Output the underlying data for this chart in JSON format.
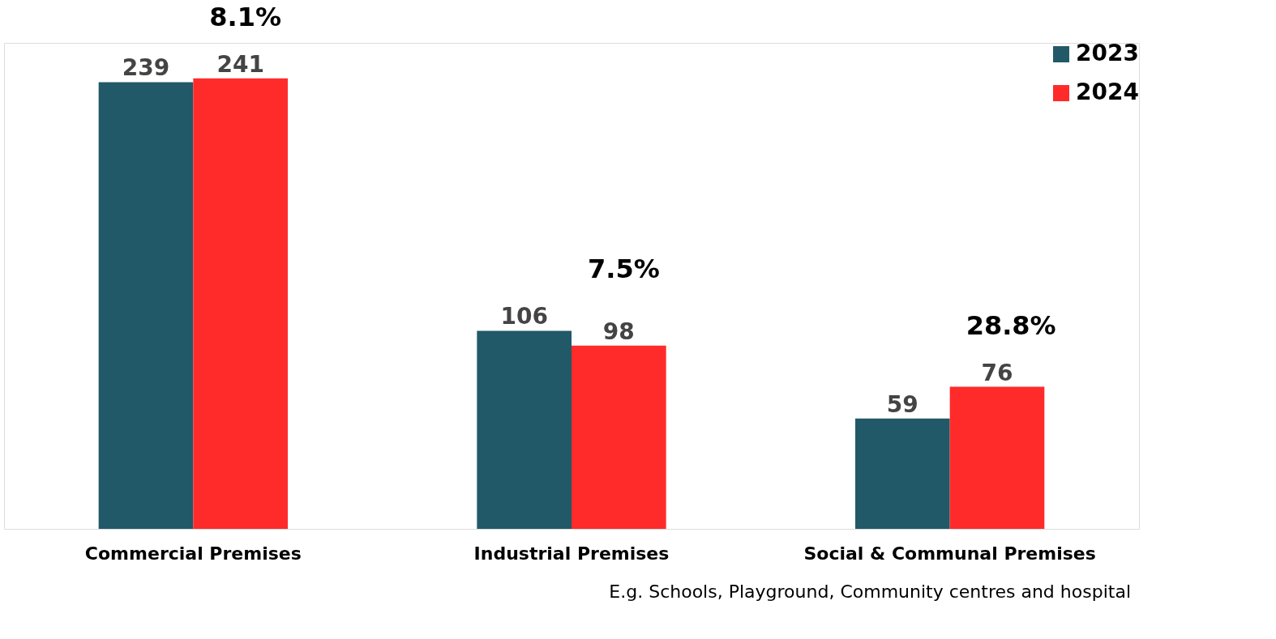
{
  "chart_data": {
    "type": "bar",
    "categories": [
      "Commercial Premises",
      "Industrial Premises",
      "Social & Communal Premises"
    ],
    "series": [
      {
        "name": "2023",
        "color": "#215968",
        "values": [
          239,
          106,
          59
        ]
      },
      {
        "name": "2024",
        "color": "#ff2b2b",
        "values": [
          241,
          98,
          76
        ]
      }
    ],
    "data_labels": true,
    "legend": "top right",
    "grid": false,
    "tick_labels": "x",
    "annotations": [
      "8.1%",
      "7.5%",
      "28.8%",
      "E.g. Schools, Playground, Community centres and hospital"
    ]
  }
}
